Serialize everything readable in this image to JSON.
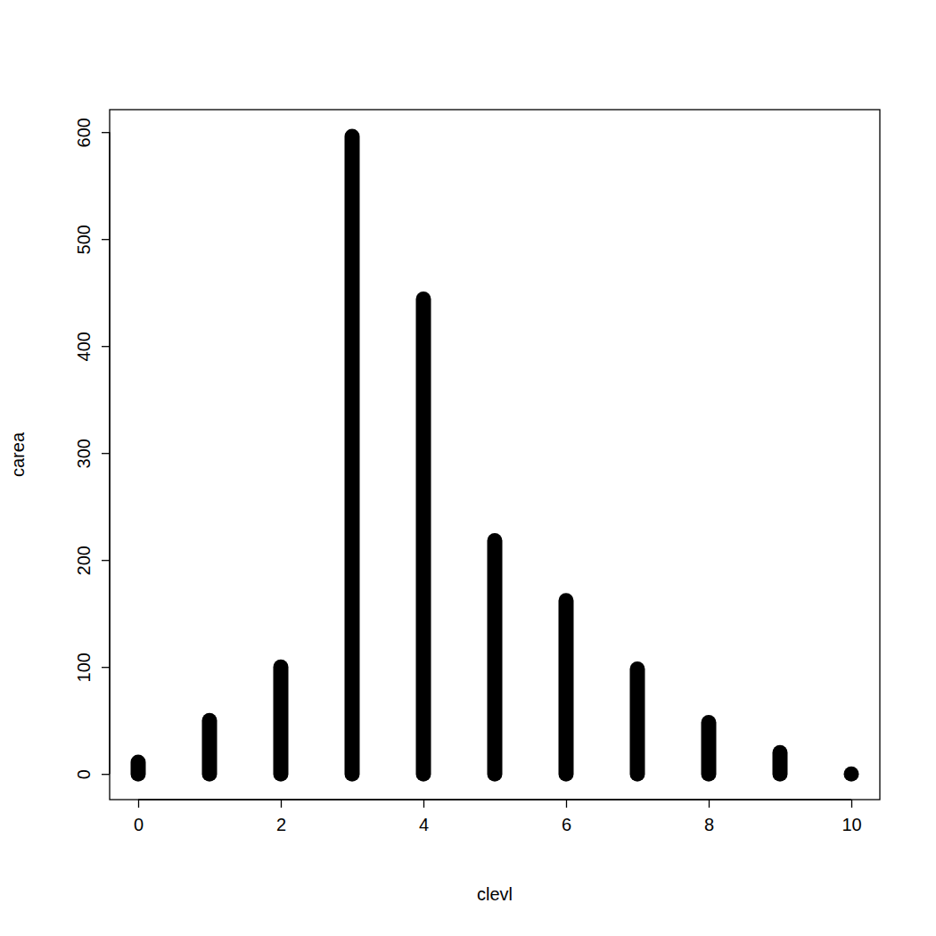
{
  "chart_data": {
    "type": "range",
    "x_label": "clevl",
    "y_label": "carea",
    "x": [
      0,
      1,
      2,
      3,
      4,
      5,
      6,
      7,
      8,
      9,
      10
    ],
    "low": [
      0,
      0,
      0,
      0,
      0,
      0,
      0,
      0,
      0,
      0,
      0
    ],
    "high": [
      11,
      50,
      100,
      596,
      444,
      218,
      162,
      98,
      48,
      20,
      0
    ],
    "color": "#000000",
    "marker": "circle",
    "xlim": [
      -0.4,
      10.4
    ],
    "xticks": [
      0,
      2,
      4,
      6,
      8,
      10
    ],
    "ylim": [
      -24,
      621
    ],
    "yticks": [
      0,
      100,
      200,
      300,
      400,
      500,
      600
    ]
  }
}
